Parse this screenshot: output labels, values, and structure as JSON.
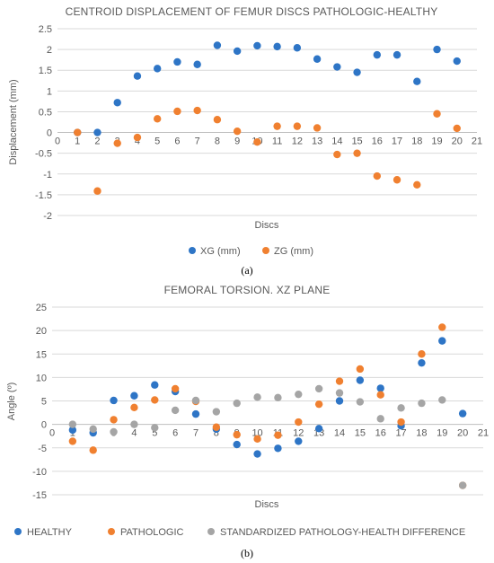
{
  "chart_data": [
    {
      "type": "scatter",
      "panel_label": "(a)",
      "title": "CENTROID DISPLACEMENT OF FEMUR DISCS PATHOLOGIC-HEALTHY",
      "xlabel": "Discs",
      "ylabel": "Displacement (mm)",
      "xlim": [
        0,
        21
      ],
      "ylim": [
        -2,
        2.5
      ],
      "x_ticks": [
        "0",
        "1",
        "2",
        "3",
        "4",
        "5",
        "6",
        "7",
        "8",
        "9",
        "10",
        "11",
        "12",
        "13",
        "14",
        "15",
        "16",
        "17",
        "18",
        "19",
        "20",
        "21"
      ],
      "y_ticks": [
        "2.5",
        "2",
        "1.5",
        "1",
        "0.5",
        "0",
        "-0.5",
        "-1",
        "-1.5",
        "-2"
      ],
      "grid": true,
      "legend": "bottom",
      "series": [
        {
          "name": "XG (mm)",
          "color": "#2E75C6",
          "x": [
            1,
            2,
            3,
            4,
            5,
            6,
            7,
            8,
            9,
            10,
            11,
            12,
            13,
            14,
            15,
            16,
            17,
            18,
            19,
            20
          ],
          "y": [
            0,
            0,
            0.72,
            1.36,
            1.54,
            1.7,
            1.64,
            2.1,
            1.96,
            2.09,
            2.07,
            2.04,
            1.77,
            1.58,
            1.45,
            1.87,
            1.87,
            1.23,
            2.0,
            1.72
          ]
        },
        {
          "name": "ZG (mm)",
          "color": "#F08030",
          "x": [
            1,
            2,
            3,
            4,
            5,
            6,
            7,
            8,
            9,
            10,
            11,
            12,
            13,
            14,
            15,
            16,
            17,
            18,
            19,
            20
          ],
          "y": [
            0,
            -1.41,
            -0.26,
            -0.12,
            0.33,
            0.51,
            0.53,
            0.31,
            0.03,
            -0.23,
            0.15,
            0.15,
            0.11,
            -0.53,
            -0.5,
            -1.05,
            -1.14,
            -1.26,
            0.45,
            0.1
          ]
        }
      ]
    },
    {
      "type": "scatter",
      "panel_label": "(b)",
      "title": "FEMORAL TORSION. XZ PLANE",
      "xlabel": "Discs",
      "ylabel": "Angle (º)",
      "xlim": [
        0,
        21
      ],
      "ylim": [
        -15,
        25
      ],
      "x_ticks": [
        "0",
        "1",
        "2",
        "3",
        "4",
        "5",
        "6",
        "7",
        "8",
        "9",
        "10",
        "11",
        "12",
        "13",
        "14",
        "15",
        "16",
        "17",
        "18",
        "19",
        "20",
        "21"
      ],
      "y_ticks": [
        "25",
        "20",
        "15",
        "10",
        "5",
        "0",
        "-5",
        "-10",
        "-15"
      ],
      "grid": true,
      "legend": "bottom",
      "series": [
        {
          "name": "HEALTHY",
          "color": "#2E75C6",
          "x": [
            1,
            2,
            3,
            4,
            5,
            6,
            7,
            8,
            9,
            10,
            11,
            12,
            13,
            14,
            15,
            16,
            17,
            18,
            19,
            20
          ],
          "y": [
            -1.2,
            -1.8,
            5.1,
            6.1,
            8.4,
            7.0,
            2.2,
            -1.0,
            -4.3,
            -6.3,
            -5.1,
            -3.6,
            -0.9,
            5.0,
            9.4,
            7.7,
            -0.3,
            13.1,
            17.8,
            2.3
          ]
        },
        {
          "name": "PATHOLOGIC",
          "color": "#F08030",
          "x": [
            1,
            2,
            3,
            4,
            5,
            6,
            7,
            8,
            9,
            10,
            11,
            12,
            13,
            14,
            15,
            16,
            17,
            18,
            19,
            20
          ],
          "y": [
            -3.6,
            -5.5,
            1.0,
            3.6,
            5.2,
            7.6,
            4.9,
            -0.6,
            -2.2,
            -3.1,
            -2.3,
            0.5,
            4.3,
            9.2,
            11.8,
            6.3,
            0.5,
            15.0,
            20.7,
            -13.0
          ]
        },
        {
          "name": "STANDARDIZED PATHOLOGY-HEALTH DIFFERENCE",
          "color": "#A5A5A5",
          "x": [
            1,
            2,
            3,
            4,
            5,
            6,
            7,
            8,
            9,
            10,
            11,
            12,
            13,
            14,
            15,
            16,
            17,
            18,
            19,
            20
          ],
          "y": [
            0.0,
            -1.0,
            -1.6,
            0.0,
            -0.7,
            3.0,
            5.1,
            2.7,
            4.5,
            5.8,
            5.7,
            6.4,
            7.6,
            6.7,
            4.8,
            1.2,
            3.5,
            4.5,
            5.2,
            -13.0
          ]
        }
      ]
    }
  ]
}
